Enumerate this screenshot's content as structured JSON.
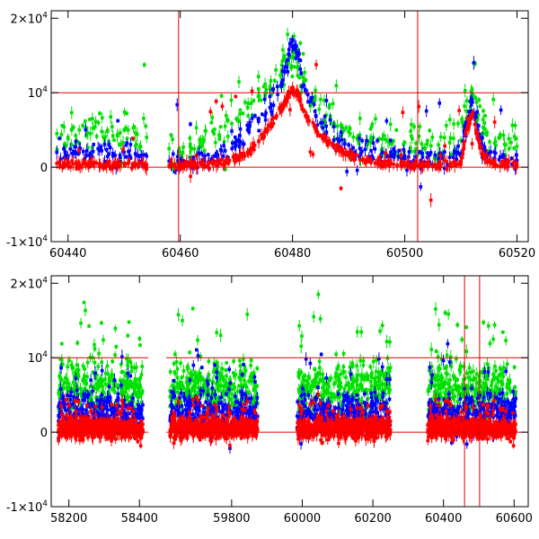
{
  "chart_data": [
    {
      "type": "scatter",
      "panel": "top",
      "title": "",
      "xlabel": "",
      "ylabel": "",
      "xlim": [
        60437,
        60522
      ],
      "ylim": [
        -10000,
        21000
      ],
      "xticks": [
        60440,
        60460,
        60480,
        60500,
        60520
      ],
      "xtick_labels": [
        "60440",
        "60460",
        "60480",
        "60500",
        "60520"
      ],
      "yticks": [
        0,
        10000,
        20000
      ],
      "ytick_labels": [
        {
          "base": "-1×10",
          "exp": "4",
          "value": -10000
        },
        {
          "base": "0",
          "exp": "",
          "value": 0
        },
        {
          "base": "10",
          "exp": "4",
          "value": 10000
        },
        {
          "base": "2×10",
          "exp": "4",
          "value": 20000
        }
      ],
      "hlines": [
        0,
        10000
      ],
      "vlines": [
        60459.7,
        60502.3
      ],
      "grid": false,
      "legend": "none",
      "series": [
        {
          "color": "#ff0000",
          "x": [
            60438,
            60440,
            60442,
            60444,
            60446,
            60448,
            60450,
            60452,
            60454,
            60458,
            60460,
            60462,
            60464,
            60466,
            60468,
            60470,
            60472,
            60474,
            60476,
            60478,
            60479,
            60480,
            60481,
            60482,
            60484,
            60486,
            60488,
            60490,
            60492,
            60494,
            60496,
            60498,
            60500,
            60502,
            60504,
            60506,
            60508,
            60510,
            60511,
            60512,
            60513,
            60514,
            60516,
            60518,
            60520
          ],
          "y": [
            500,
            400,
            300,
            600,
            200,
            300,
            500,
            400,
            300,
            200,
            200,
            300,
            400,
            500,
            700,
            1200,
            2000,
            3500,
            5500,
            8000,
            9200,
            10500,
            9800,
            7500,
            5200,
            3500,
            2500,
            1600,
            1000,
            700,
            500,
            400,
            300,
            200,
            300,
            250,
            300,
            400,
            5000,
            7000,
            4000,
            1500,
            500,
            400,
            300
          ]
        },
        {
          "color": "#0000ff",
          "x": [
            60438,
            60440,
            60442,
            60444,
            60446,
            60448,
            60450,
            60452,
            60454,
            60458,
            60460,
            60462,
            60464,
            60466,
            60468,
            60470,
            60472,
            60474,
            60476,
            60478,
            60479,
            60480,
            60481,
            60482,
            60484,
            60486,
            60488,
            60490,
            60492,
            60494,
            60496,
            60498,
            60500,
            60502,
            60504,
            60506,
            60508,
            60510,
            60511,
            60512,
            60513,
            60514,
            60516,
            60518,
            60520
          ],
          "y": [
            2000,
            1500,
            2500,
            1800,
            2200,
            1500,
            2000,
            1800,
            1500,
            800,
            600,
            800,
            1000,
            1500,
            2200,
            3500,
            5000,
            6500,
            8000,
            11000,
            13500,
            17000,
            15000,
            11000,
            7500,
            5500,
            3800,
            3000,
            2500,
            2200,
            2000,
            1700,
            1500,
            1400,
            1300,
            1200,
            1300,
            1500,
            6000,
            9000,
            5000,
            2500,
            1200,
            1000,
            900
          ]
        },
        {
          "color": "#00e000",
          "x": [
            60438,
            60440,
            60442,
            60444,
            60446,
            60448,
            60450,
            60452,
            60454,
            60458,
            60460,
            60462,
            60464,
            60466,
            60468,
            60470,
            60472,
            60474,
            60476,
            60478,
            60479,
            60480,
            60481,
            60482,
            60484,
            60486,
            60488,
            60490,
            60492,
            60494,
            60496,
            60498,
            60500,
            60502,
            60504,
            60506,
            60508,
            60510,
            60511,
            60512,
            60513,
            60514,
            60516,
            60518,
            60520
          ],
          "y": [
            4500,
            4000,
            5000,
            4500,
            4800,
            4200,
            5000,
            4600,
            4000,
            2500,
            2000,
            2500,
            3500,
            4500,
            5500,
            6500,
            8000,
            9500,
            10500,
            12500,
            14000,
            15500,
            13500,
            11500,
            9000,
            7000,
            5500,
            4800,
            4300,
            4000,
            3800,
            3500,
            3300,
            3200,
            3100,
            3000,
            3300,
            3600,
            7500,
            10500,
            6500,
            4500,
            3200,
            3000,
            2800
          ]
        }
      ]
    },
    {
      "type": "scatter",
      "panel": "bottom",
      "title": "",
      "xlabel": "",
      "ylabel": "",
      "axis_break": [
        58420,
        59620
      ],
      "xlim": [
        58150,
        60640
      ],
      "ylim": [
        -10000,
        21000
      ],
      "xticks": [
        58200,
        58400,
        59800,
        60000,
        60200,
        60400,
        60600
      ],
      "xtick_labels": [
        "58200",
        "58400",
        "59800",
        "60000",
        "60200",
        "60400",
        "60600"
      ],
      "yticks": [
        0,
        10000,
        20000
      ],
      "ytick_labels": [
        {
          "base": "-1×10",
          "exp": "4",
          "value": -10000
        },
        {
          "base": "0",
          "exp": "",
          "value": 0
        },
        {
          "base": "10",
          "exp": "4",
          "value": 10000
        },
        {
          "base": "2×10",
          "exp": "4",
          "value": 20000
        }
      ],
      "hlines": [
        0,
        10000
      ],
      "vlines": [
        60459.7,
        60502.3
      ],
      "grid": false,
      "legend": "none",
      "observing_seasons": [
        [
          58170,
          58410
        ],
        [
          59625,
          59875
        ],
        [
          59985,
          60250
        ],
        [
          60355,
          60605
        ]
      ],
      "series": [
        {
          "color": "#ff0000",
          "level": 500,
          "spread": 2200
        },
        {
          "color": "#0000ff",
          "level": 2500,
          "spread": 4500
        },
        {
          "color": "#00e000",
          "level": 6000,
          "spread": 6000
        }
      ]
    }
  ]
}
